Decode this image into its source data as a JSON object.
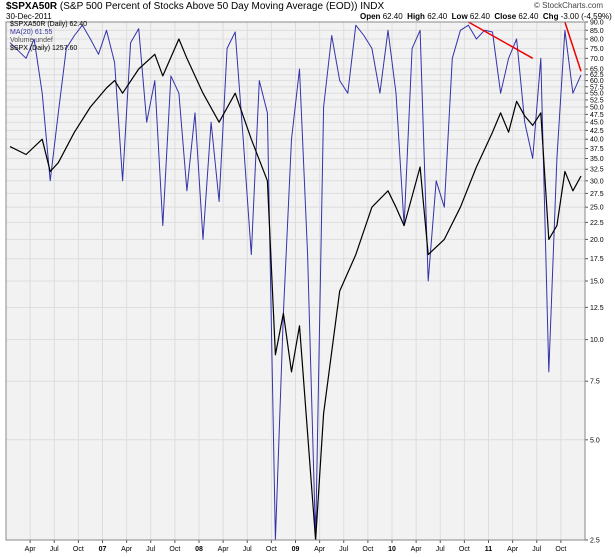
{
  "header": {
    "symbol": "$SPXA50R",
    "description": "(S&P 500 Percent of Stocks Above 50 Day Moving Average (EOD))",
    "exchange": "INDX",
    "date": "30-Dec-2011",
    "ohlc": {
      "open_label": "Open",
      "open": "62.40",
      "high_label": "High",
      "high": "62.40",
      "low_label": "Low",
      "low": "62.40",
      "close_label": "Close",
      "close": "62.40",
      "chg_label": "Chg",
      "chg": "-3.00 (-4.59%)",
      "chg_arrow": "▼"
    },
    "brand": "© StockCharts.com"
  },
  "legend": {
    "line1": "$SPXA50R (Daily) 62.40",
    "line2": "MA(20) 61.55",
    "line3": "Volume undef",
    "line4": "$SPX (Daily) 1257.60"
  },
  "colors": {
    "spxa50r": "#3333aa",
    "spx": "#000000",
    "trendline": "#ee0000",
    "grid": "#dddddd",
    "plot_bg": "#f2f2f2"
  },
  "chart_data": {
    "type": "line",
    "y_scale": "log",
    "ylim": [
      2.5,
      90
    ],
    "y_ticks": [
      "90.0",
      "85.0",
      "80.0",
      "75.0",
      "70.0",
      "65.0",
      "62.5",
      "60.0",
      "57.5",
      "55.0",
      "52.5",
      "50.0",
      "47.5",
      "45.0",
      "42.5",
      "40.0",
      "37.5",
      "35.0",
      "32.5",
      "30.0",
      "27.5",
      "25.0",
      "22.5",
      "20.0",
      "17.5",
      "15.0",
      "12.5",
      "10.0",
      "7.5",
      "5.0",
      "2.5"
    ],
    "x_ticks": [
      "Apr",
      "Jul",
      "Oct",
      "07",
      "Apr",
      "Jul",
      "Oct",
      "08",
      "Apr",
      "Jul",
      "Oct",
      "09",
      "Apr",
      "Jul",
      "Oct",
      "10",
      "Apr",
      "Jul",
      "Oct",
      "11",
      "Apr",
      "Jul",
      "Oct"
    ],
    "x_tick_bold": [
      "07",
      "08",
      "09",
      "10",
      "11"
    ],
    "x_range": [
      "2006-01",
      "2011-12"
    ],
    "series": [
      {
        "name": "$SPXA50R (Daily)",
        "x": [
          "2006-01",
          "2006-03",
          "2006-04",
          "2006-05",
          "2006-06",
          "2006-07",
          "2006-08",
          "2006-09",
          "2006-10",
          "2006-11",
          "2006-12",
          "2007-01",
          "2007-02",
          "2007-03",
          "2007-04",
          "2007-05",
          "2007-06",
          "2007-07",
          "2007-08",
          "2007-09",
          "2007-10",
          "2007-11",
          "2007-12",
          "2008-01",
          "2008-02",
          "2008-03",
          "2008-04",
          "2008-05",
          "2008-06",
          "2008-07",
          "2008-08",
          "2008-09",
          "2008-10",
          "2008-11",
          "2008-12",
          "2009-01",
          "2009-02",
          "2009-03",
          "2009-04",
          "2009-05",
          "2009-06",
          "2009-07",
          "2009-08",
          "2009-09",
          "2009-10",
          "2009-11",
          "2009-12",
          "2010-01",
          "2010-02",
          "2010-03",
          "2010-04",
          "2010-05",
          "2010-06",
          "2010-07",
          "2010-08",
          "2010-09",
          "2010-10",
          "2010-11",
          "2010-12",
          "2011-01",
          "2011-02",
          "2011-03",
          "2011-04",
          "2011-05",
          "2011-06",
          "2011-07",
          "2011-08",
          "2011-09",
          "2011-10",
          "2011-11",
          "2011-12"
        ],
        "values": [
          78,
          70,
          80,
          55,
          30,
          48,
          75,
          82,
          88,
          80,
          72,
          85,
          68,
          30,
          78,
          86,
          45,
          60,
          22,
          62,
          55,
          28,
          48,
          20,
          45,
          26,
          75,
          84,
          40,
          18,
          60,
          48,
          2.5,
          12,
          40,
          65,
          18,
          2.5,
          50,
          82,
          60,
          55,
          88,
          82,
          75,
          55,
          85,
          55,
          22,
          75,
          85,
          15,
          30,
          25,
          70,
          85,
          88,
          80,
          85,
          84,
          55,
          70,
          80,
          45,
          35,
          70,
          8,
          35,
          85,
          55,
          62.4
        ]
      },
      {
        "name": "$SPX (Daily)",
        "x": [
          "2006-01",
          "2006-03",
          "2006-05",
          "2006-06",
          "2006-07",
          "2006-09",
          "2006-11",
          "2007-01",
          "2007-02",
          "2007-03",
          "2007-05",
          "2007-07",
          "2007-08",
          "2007-10",
          "2007-11",
          "2008-01",
          "2008-03",
          "2008-05",
          "2008-07",
          "2008-09",
          "2008-10",
          "2008-11",
          "2008-12",
          "2009-01",
          "2009-03",
          "2009-04",
          "2009-06",
          "2009-08",
          "2009-10",
          "2009-12",
          "2010-01",
          "2010-02",
          "2010-04",
          "2010-05",
          "2010-07",
          "2010-09",
          "2010-11",
          "2011-01",
          "2011-02",
          "2011-03",
          "2011-04",
          "2011-05",
          "2011-06",
          "2011-07",
          "2011-08",
          "2011-09",
          "2011-10",
          "2011-11",
          "2011-12"
        ],
        "values": [
          38,
          36,
          40,
          32,
          34,
          42,
          50,
          57,
          60,
          55,
          65,
          72,
          62,
          80,
          70,
          55,
          45,
          55,
          40,
          30,
          9,
          12,
          8,
          11,
          2.5,
          6,
          14,
          18,
          25,
          28,
          25,
          22,
          33,
          18,
          20,
          25,
          33,
          42,
          48,
          42,
          52,
          47,
          44,
          48,
          20,
          22,
          32,
          28,
          31
        ]
      }
    ],
    "trendlines": [
      {
        "x": [
          "2010-10",
          "2011-06"
        ],
        "values": [
          90,
          70
        ]
      },
      {
        "x": [
          "2011-10",
          "2011-12"
        ],
        "values": [
          90,
          64
        ]
      }
    ]
  }
}
